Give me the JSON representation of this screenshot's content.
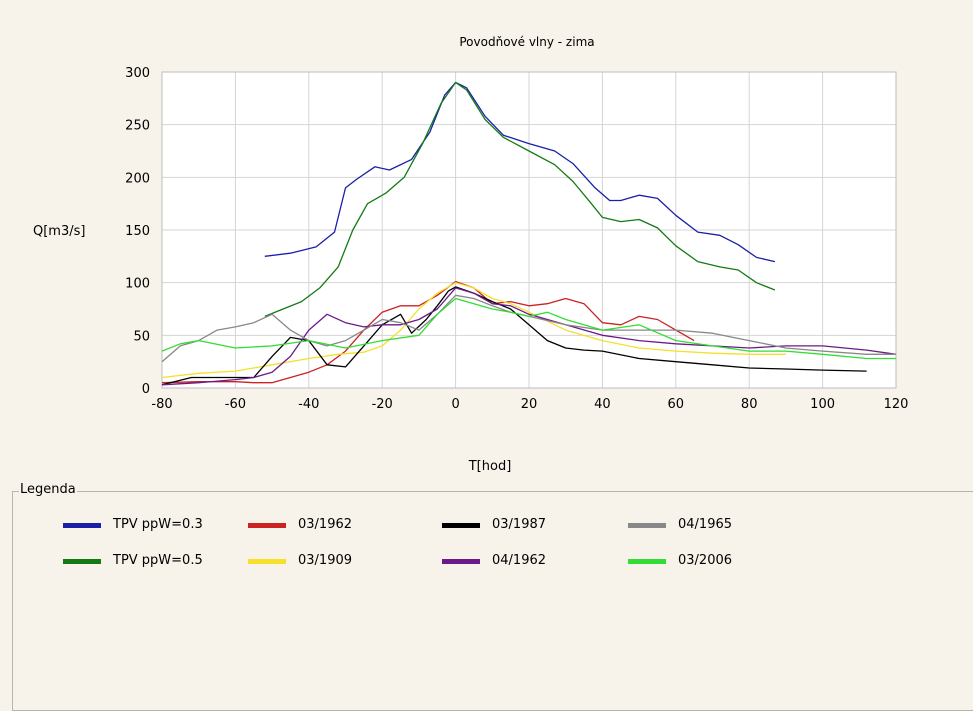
{
  "chart_data": {
    "type": "line",
    "title": "Povodňové vlny - zima",
    "xlabel": "T[hod]",
    "ylabel": "Q[m3/s]",
    "xlim": [
      -80,
      120
    ],
    "ylim": [
      0,
      300
    ],
    "xticks": [
      -80,
      -60,
      -40,
      -20,
      0,
      20,
      40,
      60,
      80,
      100,
      120
    ],
    "yticks": [
      0,
      50,
      100,
      150,
      200,
      250,
      300
    ],
    "grid": true,
    "series": [
      {
        "name": "TPV ppW=0.3",
        "color": "#1a1fa8",
        "x": [
          -52,
          -45,
          -38,
          -33,
          -30,
          -27,
          -22,
          -18,
          -12,
          -7,
          -3,
          0,
          3,
          8,
          13,
          20,
          27,
          32,
          38,
          42,
          45,
          50,
          55,
          60,
          66,
          72,
          77,
          82,
          87
        ],
        "y": [
          125,
          128,
          134,
          148,
          190,
          198,
          210,
          207,
          217,
          243,
          278,
          290,
          285,
          258,
          240,
          232,
          225,
          213,
          190,
          178,
          178,
          183,
          180,
          164,
          148,
          145,
          136,
          124,
          120
        ]
      },
      {
        "name": "TPV ppW=0.5",
        "color": "#157a15",
        "x": [
          -52,
          -47,
          -42,
          -37,
          -32,
          -28,
          -24,
          -19,
          -14,
          -9,
          -4,
          0,
          3,
          8,
          13,
          20,
          27,
          32,
          37,
          40,
          45,
          50,
          55,
          60,
          66,
          72,
          77,
          82,
          87
        ],
        "y": [
          68,
          75,
          82,
          95,
          115,
          150,
          175,
          185,
          200,
          232,
          270,
          290,
          283,
          255,
          238,
          225,
          212,
          196,
          175,
          162,
          158,
          160,
          152,
          135,
          120,
          115,
          112,
          100,
          93
        ]
      },
      {
        "name": "03/1962",
        "color": "#cc2222",
        "x": [
          -80,
          -70,
          -60,
          -55,
          -50,
          -45,
          -40,
          -35,
          -30,
          -25,
          -20,
          -15,
          -10,
          -5,
          0,
          5,
          10,
          15,
          20,
          25,
          30,
          35,
          40,
          45,
          50,
          55,
          60,
          65
        ],
        "y": [
          5,
          6,
          6,
          5,
          5,
          10,
          15,
          22,
          35,
          55,
          72,
          78,
          78,
          88,
          101,
          95,
          80,
          82,
          78,
          80,
          85,
          80,
          62,
          60,
          68,
          65,
          55,
          45
        ]
      },
      {
        "name": "03/1909",
        "color": "#f5e02a",
        "x": [
          -80,
          -70,
          -60,
          -50,
          -40,
          -32,
          -25,
          -20,
          -15,
          -10,
          -5,
          0,
          5,
          10,
          15,
          20,
          30,
          40,
          50,
          60,
          70,
          80,
          90
        ],
        "y": [
          10,
          14,
          16,
          22,
          28,
          32,
          34,
          40,
          55,
          75,
          90,
          100,
          95,
          85,
          80,
          72,
          55,
          45,
          38,
          35,
          33,
          32,
          32
        ]
      },
      {
        "name": "03/1987",
        "color": "#000000",
        "x": [
          -80,
          -72,
          -65,
          -60,
          -55,
          -50,
          -45,
          -40,
          -35,
          -30,
          -25,
          -20,
          -15,
          -12,
          -8,
          -5,
          -2,
          0,
          5,
          10,
          15,
          20,
          25,
          30,
          35,
          40,
          50,
          60,
          70,
          80,
          90,
          100,
          112
        ],
        "y": [
          3,
          10,
          10,
          10,
          10,
          30,
          48,
          45,
          22,
          20,
          40,
          60,
          70,
          52,
          65,
          78,
          92,
          96,
          90,
          82,
          75,
          60,
          45,
          38,
          36,
          35,
          28,
          25,
          22,
          19,
          18,
          17,
          16
        ]
      },
      {
        "name": "04/1962",
        "color": "#6b1a8a",
        "x": [
          -80,
          -70,
          -60,
          -55,
          -50,
          -45,
          -40,
          -35,
          -30,
          -25,
          -20,
          -15,
          -10,
          -5,
          0,
          5,
          10,
          15,
          20,
          30,
          40,
          50,
          60,
          70,
          80,
          90,
          100,
          112,
          120
        ],
        "y": [
          3,
          5,
          8,
          10,
          15,
          30,
          55,
          70,
          62,
          58,
          60,
          60,
          65,
          75,
          95,
          90,
          80,
          78,
          70,
          60,
          50,
          45,
          42,
          40,
          38,
          40,
          40,
          36,
          32
        ]
      },
      {
        "name": "04/1965",
        "color": "#888888",
        "x": [
          -80,
          -75,
          -70,
          -65,
          -60,
          -55,
          -50,
          -45,
          -40,
          -35,
          -30,
          -25,
          -20,
          -15,
          -10,
          -5,
          0,
          5,
          10,
          15,
          20,
          30,
          40,
          50,
          60,
          70,
          80,
          90,
          100,
          112,
          120
        ],
        "y": [
          25,
          40,
          45,
          55,
          58,
          62,
          70,
          55,
          45,
          40,
          45,
          55,
          65,
          62,
          55,
          70,
          88,
          85,
          78,
          72,
          68,
          60,
          55,
          55,
          55,
          52,
          45,
          38,
          35,
          32,
          32
        ]
      },
      {
        "name": "03/2006",
        "color": "#33dd33",
        "x": [
          -80,
          -75,
          -70,
          -60,
          -50,
          -40,
          -30,
          -20,
          -10,
          -5,
          0,
          5,
          10,
          15,
          20,
          25,
          30,
          40,
          50,
          60,
          70,
          80,
          90,
          100,
          112,
          120
        ],
        "y": [
          35,
          42,
          45,
          38,
          40,
          45,
          38,
          45,
          50,
          70,
          85,
          80,
          75,
          72,
          68,
          72,
          65,
          55,
          60,
          45,
          40,
          35,
          35,
          32,
          28,
          28
        ]
      }
    ]
  },
  "legend": {
    "title": "Legenda",
    "items": [
      {
        "label": "TPV ppW=0.3",
        "color": "#1a1fa8"
      },
      {
        "label": "TPV ppW=0.5",
        "color": "#157a15"
      },
      {
        "label": "03/1962",
        "color": "#cc2222"
      },
      {
        "label": "03/1909",
        "color": "#f5e02a"
      },
      {
        "label": "03/1987",
        "color": "#000000"
      },
      {
        "label": "04/1962",
        "color": "#6b1a8a"
      },
      {
        "label": "04/1965",
        "color": "#888888"
      },
      {
        "label": "03/2006",
        "color": "#33dd33"
      }
    ]
  }
}
